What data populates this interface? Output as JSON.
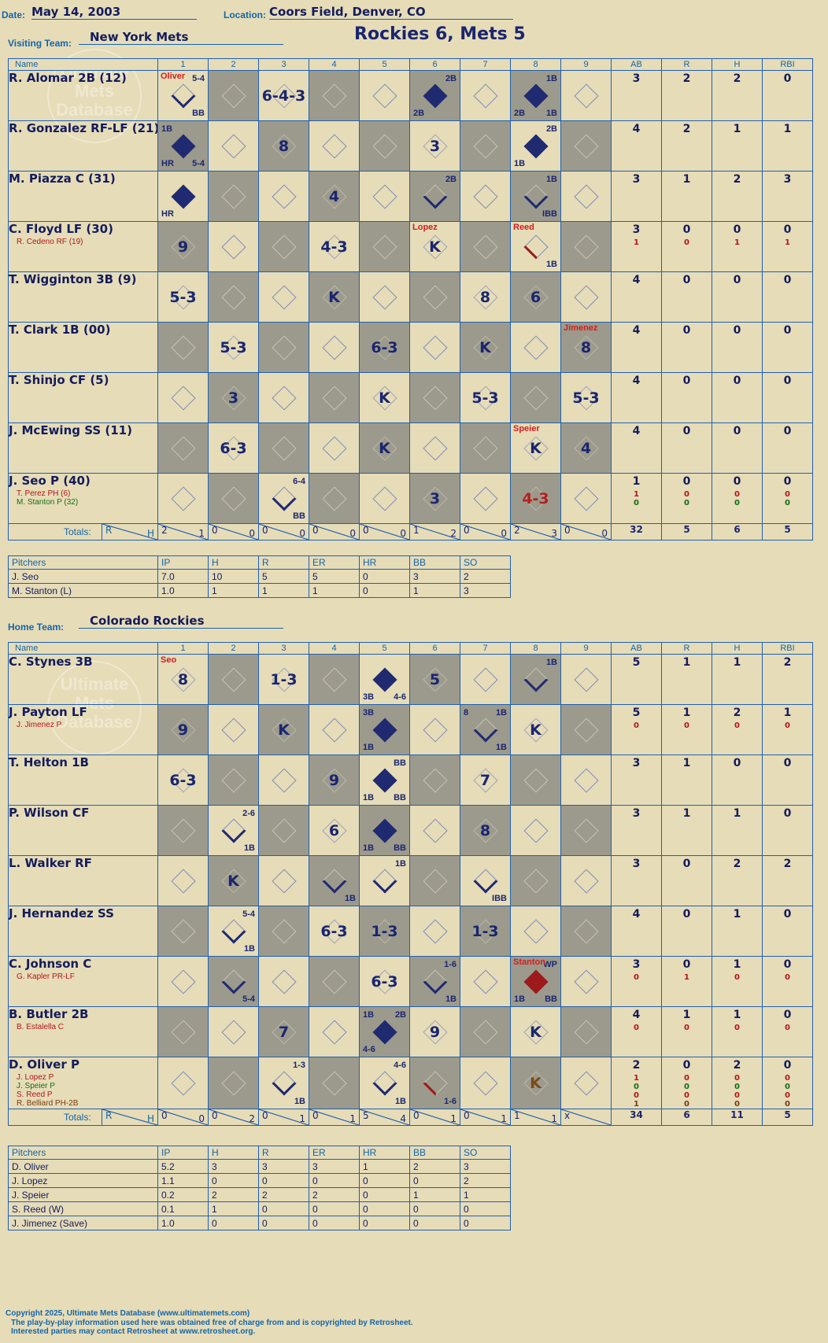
{
  "header": {
    "date_label": "Date:",
    "date": "May 14, 2003",
    "location_label": "Location:",
    "location": "Coors Field, Denver, CO",
    "visiting_label": "Visiting Team:",
    "visiting_team": "New York Mets",
    "home_label": "Home Team:",
    "home_team": "Colorado Rockies",
    "title": "Rockies 6, Mets 5"
  },
  "columns": [
    "Name",
    "1",
    "2",
    "3",
    "4",
    "5",
    "6",
    "7",
    "8",
    "9",
    "AB",
    "R",
    "H",
    "RBI"
  ],
  "totals_label": "Totals:",
  "totals_rh": [
    "R",
    "H"
  ],
  "watermark": "Ultimate Mets Database",
  "visitors": {
    "rows": [
      {
        "name": "R. Alomar 2B (12)",
        "subs": [],
        "stats": [
          [
            "3"
          ],
          [
            "2"
          ],
          [
            "2"
          ],
          [
            "0"
          ]
        ],
        "cells": [
          {
            "pitcher": "Oliver",
            "tr": "5-4",
            "br": "BB",
            "diamond": "part"
          },
          {},
          {
            "res": "6-4-3"
          },
          {},
          {},
          {
            "diamond": "scored",
            "tr": "2B",
            "bl": "2B"
          },
          {},
          {
            "diamond": "scored",
            "tr": "1B",
            "bl": "2B",
            "br": "1B"
          },
          {}
        ]
      },
      {
        "name": "R. Gonzalez RF-LF (21)",
        "subs": [],
        "stats": [
          [
            "4"
          ],
          [
            "2"
          ],
          [
            "1"
          ],
          [
            "1"
          ]
        ],
        "cells": [
          {
            "diamond": "scored",
            "tl": "1B",
            "bl": "HR",
            "br": "5-4"
          },
          {},
          {
            "res": "8"
          },
          {},
          {},
          {
            "res": "3"
          },
          {},
          {
            "diamond": "scored",
            "tr": "2B",
            "bl": "1B"
          },
          {}
        ]
      },
      {
        "name": "M. Piazza C (31)",
        "subs": [],
        "stats": [
          [
            "3"
          ],
          [
            "1"
          ],
          [
            "2"
          ],
          [
            "3"
          ]
        ],
        "cells": [
          {
            "diamond": "scored",
            "bl": "HR"
          },
          {},
          {},
          {
            "res": "4"
          },
          {},
          {
            "diamond": "part",
            "tr": "2B"
          },
          {},
          {
            "diamond": "part",
            "tr": "1B",
            "br": "IBB"
          },
          {}
        ]
      },
      {
        "name": "C. Floyd LF (30)",
        "subs": [
          {
            "t": "R. Cedeno RF (19)",
            "c": ""
          }
        ],
        "stats": [
          [
            "3",
            "1"
          ],
          [
            "0",
            "0"
          ],
          [
            "0",
            "1"
          ],
          [
            "0",
            "1"
          ]
        ],
        "cells": [
          {
            "res": "9"
          },
          {},
          {},
          {
            "res": "4-3"
          },
          {},
          {
            "pitcher": "Lopez",
            "res": "K"
          },
          {},
          {
            "pitcher": "Reed",
            "diamond": "redline",
            "br": "1B"
          },
          {}
        ]
      },
      {
        "name": "T. Wigginton 3B (9)",
        "subs": [],
        "stats": [
          [
            "4"
          ],
          [
            "0"
          ],
          [
            "0"
          ],
          [
            "0"
          ]
        ],
        "cells": [
          {
            "res": "5-3"
          },
          {},
          {},
          {
            "res": "K"
          },
          {},
          {},
          {
            "res": "8"
          },
          {
            "res": "6"
          },
          {}
        ]
      },
      {
        "name": "T. Clark 1B (00)",
        "subs": [],
        "stats": [
          [
            "4"
          ],
          [
            "0"
          ],
          [
            "0"
          ],
          [
            "0"
          ]
        ],
        "cells": [
          {},
          {
            "res": "5-3"
          },
          {},
          {},
          {
            "res": "6-3"
          },
          {},
          {
            "res": "K"
          },
          {},
          {
            "pitcher": "Jimenez",
            "res": "8"
          }
        ]
      },
      {
        "name": "T. Shinjo CF (5)",
        "subs": [],
        "stats": [
          [
            "4"
          ],
          [
            "0"
          ],
          [
            "0"
          ],
          [
            "0"
          ]
        ],
        "cells": [
          {},
          {
            "res": "3"
          },
          {},
          {},
          {
            "res": "K"
          },
          {},
          {
            "res": "5-3"
          },
          {},
          {
            "res": "5-3"
          }
        ]
      },
      {
        "name": "J. McEwing SS (11)",
        "subs": [],
        "stats": [
          [
            "4"
          ],
          [
            "0"
          ],
          [
            "0"
          ],
          [
            "0"
          ]
        ],
        "cells": [
          {},
          {
            "res": "6-3"
          },
          {},
          {},
          {
            "res": "K"
          },
          {},
          {},
          {
            "pitcher": "Speier",
            "res": "K"
          },
          {
            "res": "4"
          }
        ]
      },
      {
        "name": "J. Seo P (40)",
        "subs": [
          {
            "t": "T. Perez PH (6)",
            "c": ""
          },
          {
            "t": "M. Stanton P (32)",
            "c": "g"
          }
        ],
        "stats": [
          [
            "1",
            "1",
            "0"
          ],
          [
            "0",
            "0",
            "0"
          ],
          [
            "0",
            "0",
            "0"
          ],
          [
            "0",
            "0",
            "0"
          ]
        ],
        "cells": [
          {},
          {},
          {
            "diamond": "part",
            "tr": "6-4",
            "br": "BB"
          },
          {},
          {},
          {
            "res": "3"
          },
          {},
          {
            "res": "4-3",
            "red": true
          },
          {}
        ]
      }
    ],
    "totals": [
      [
        "2",
        "1"
      ],
      [
        "0",
        "0"
      ],
      [
        "0",
        "0"
      ],
      [
        "0",
        "0"
      ],
      [
        "0",
        "0"
      ],
      [
        "1",
        "2"
      ],
      [
        "0",
        "0"
      ],
      [
        "2",
        "3"
      ],
      [
        "0",
        "0"
      ]
    ],
    "totals_stats": [
      "32",
      "5",
      "6",
      "5"
    ],
    "pitchers": {
      "header": [
        "Pitchers",
        "IP",
        "H",
        "R",
        "ER",
        "HR",
        "BB",
        "SO"
      ],
      "rows": [
        [
          "J. Seo",
          "7.0",
          "10",
          "5",
          "5",
          "0",
          "3",
          "2"
        ],
        [
          "M. Stanton (L)",
          "1.0",
          "1",
          "1",
          "1",
          "0",
          "1",
          "3"
        ]
      ]
    }
  },
  "home": {
    "rows": [
      {
        "name": "C. Stynes 3B",
        "subs": [],
        "stats": [
          [
            "5"
          ],
          [
            "1"
          ],
          [
            "1"
          ],
          [
            "2"
          ]
        ],
        "cells": [
          {
            "pitcher": "Seo",
            "res": "8"
          },
          {},
          {
            "res": "1-3"
          },
          {},
          {
            "diamond": "scored",
            "bl": "3B",
            "br": "4-6"
          },
          {
            "res": "5"
          },
          {},
          {
            "diamond": "part",
            "tr": "1B"
          },
          {}
        ]
      },
      {
        "name": "J. Payton LF",
        "subs": [
          {
            "t": "J. Jimenez P",
            "c": ""
          }
        ],
        "stats": [
          [
            "5",
            "0"
          ],
          [
            "1",
            "0"
          ],
          [
            "2",
            "0"
          ],
          [
            "1",
            "0"
          ]
        ],
        "cells": [
          {
            "res": "9"
          },
          {},
          {
            "res": "K"
          },
          {},
          {
            "diamond": "scored",
            "tl": "3B",
            "bl": "1B"
          },
          {},
          {
            "diamond": "part",
            "tl": "8",
            "tr": "1B",
            "br": "1B"
          },
          {
            "res": "K"
          },
          {}
        ]
      },
      {
        "name": "T. Helton 1B",
        "subs": [],
        "stats": [
          [
            "3"
          ],
          [
            "1"
          ],
          [
            "0"
          ],
          [
            "0"
          ]
        ],
        "cells": [
          {
            "res": "6-3"
          },
          {},
          {},
          {
            "res": "9"
          },
          {
            "diamond": "scored",
            "tr": "BB",
            "bl": "1B",
            "br": "BB"
          },
          {},
          {
            "res": "7"
          },
          {},
          {}
        ]
      },
      {
        "name": "P. Wilson CF",
        "subs": [],
        "stats": [
          [
            "3"
          ],
          [
            "1"
          ],
          [
            "1"
          ],
          [
            "0"
          ]
        ],
        "cells": [
          {},
          {
            "diamond": "part",
            "tr": "2-6",
            "br": "1B"
          },
          {},
          {
            "res": "6"
          },
          {
            "diamond": "scored",
            "bl": "1B",
            "br": "BB"
          },
          {},
          {
            "res": "8"
          },
          {},
          {}
        ]
      },
      {
        "name": "L. Walker RF",
        "subs": [],
        "stats": [
          [
            "3"
          ],
          [
            "0"
          ],
          [
            "2"
          ],
          [
            "2"
          ]
        ],
        "cells": [
          {},
          {
            "res": "K"
          },
          {},
          {
            "diamond": "part",
            "br": "1B"
          },
          {
            "diamond": "part",
            "tr": "1B"
          },
          {},
          {
            "diamond": "part",
            "br": "IBB"
          },
          {},
          {}
        ]
      },
      {
        "name": "J. Hernandez SS",
        "subs": [],
        "stats": [
          [
            "4"
          ],
          [
            "0"
          ],
          [
            "1"
          ],
          [
            "0"
          ]
        ],
        "cells": [
          {},
          {
            "diamond": "part",
            "tr": "5-4",
            "br": "1B"
          },
          {},
          {
            "res": "6-3"
          },
          {
            "res": "1-3"
          },
          {},
          {
            "res": "1-3"
          },
          {},
          {}
        ]
      },
      {
        "name": "C. Johnson C",
        "subs": [
          {
            "t": "G. Kapler PR-LF",
            "c": ""
          }
        ],
        "stats": [
          [
            "3",
            "0"
          ],
          [
            "0",
            "1"
          ],
          [
            "1",
            "0"
          ],
          [
            "0",
            "0"
          ]
        ],
        "cells": [
          {},
          {
            "diamond": "part",
            "br": "5-4"
          },
          {},
          {},
          {
            "res": "6-3"
          },
          {
            "diamond": "part",
            "tr": "1-6",
            "br": "1B"
          },
          {},
          {
            "pitcher": "Stanton",
            "diamond": "red",
            "tr": "WP",
            "bl": "1B",
            "br": "BB"
          },
          {}
        ]
      },
      {
        "name": "B. Butler 2B",
        "subs": [
          {
            "t": "B. Estalella C",
            "c": ""
          }
        ],
        "stats": [
          [
            "4",
            "0"
          ],
          [
            "1",
            "0"
          ],
          [
            "1",
            "0"
          ],
          [
            "0",
            "0"
          ]
        ],
        "cells": [
          {},
          {},
          {
            "res": "7"
          },
          {},
          {
            "diamond": "scored",
            "tl": "1B",
            "tr": "2B",
            "bl": "4-6"
          },
          {
            "res": "9"
          },
          {},
          {
            "res": "K"
          },
          {}
        ]
      },
      {
        "name": "D. Oliver P",
        "subs": [
          {
            "t": "J. Lopez P",
            "c": ""
          },
          {
            "t": "J. Speier P",
            "c": "g"
          },
          {
            "t": "S. Reed P",
            "c": ""
          },
          {
            "t": "R. Belliard PH-2B",
            "c": "o"
          }
        ],
        "stats": [
          [
            "2",
            "1",
            "0",
            "0",
            "1"
          ],
          [
            "0",
            "0",
            "0",
            "0",
            "0"
          ],
          [
            "2",
            "0",
            "0",
            "0",
            "0"
          ],
          [
            "0",
            "0",
            "0",
            "0",
            "0"
          ]
        ],
        "cells": [
          {},
          {},
          {
            "diamond": "part",
            "tr": "1-3",
            "br": "1B"
          },
          {},
          {
            "diamond": "part",
            "tr": "4-6",
            "br": "1B"
          },
          {
            "diamond": "redline",
            "br": "1-6"
          },
          {},
          {
            "res": "K",
            "brown": true
          },
          {}
        ]
      }
    ],
    "totals": [
      [
        "0",
        "0"
      ],
      [
        "0",
        "2"
      ],
      [
        "0",
        "1"
      ],
      [
        "0",
        "1"
      ],
      [
        "5",
        "4"
      ],
      [
        "0",
        "1"
      ],
      [
        "0",
        "1"
      ],
      [
        "1",
        "1"
      ],
      [
        "x",
        ""
      ]
    ],
    "totals_stats": [
      "34",
      "6",
      "11",
      "5"
    ],
    "pitchers": {
      "header": [
        "Pitchers",
        "IP",
        "H",
        "R",
        "ER",
        "HR",
        "BB",
        "SO"
      ],
      "rows": [
        [
          "D. Oliver",
          "5.2",
          "3",
          "3",
          "3",
          "1",
          "2",
          "3"
        ],
        [
          "J. Lopez",
          "1.1",
          "0",
          "0",
          "0",
          "0",
          "0",
          "2"
        ],
        [
          "J. Speier",
          "0.2",
          "2",
          "2",
          "2",
          "0",
          "1",
          "1"
        ],
        [
          "S. Reed (W)",
          "0.1",
          "1",
          "0",
          "0",
          "0",
          "0",
          "0"
        ],
        [
          "J. Jimenez (Save)",
          "1.0",
          "0",
          "0",
          "0",
          "0",
          "0",
          "0"
        ]
      ]
    }
  },
  "footer": {
    "line1": "Copyright 2025, Ultimate Mets Database (www.ultimatemets.com)",
    "line2": "The play-by-play information used here was obtained free of charge from and is copyrighted by Retrosheet.",
    "line3": "Interested parties may contact Retrosheet at www.retrosheet.org."
  }
}
